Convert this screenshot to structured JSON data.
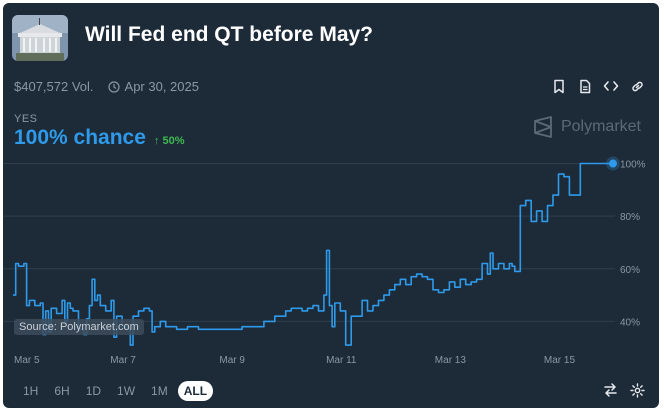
{
  "market": {
    "title": "Will Fed end QT before May?",
    "volume": "$407,572 Vol.",
    "end_date": "Apr 30, 2025",
    "outcome_label": "YES",
    "chance": "100% chance",
    "change": "↑ 50%",
    "brand": "Polymarket",
    "source": "Source: Polymarket.com"
  },
  "toolbar": {
    "icons": [
      "bookmark-icon",
      "document-icon",
      "embed-code-icon",
      "link-icon"
    ]
  },
  "time_ranges": [
    "1H",
    "6H",
    "1D",
    "1W",
    "1M",
    "ALL"
  ],
  "selected_range": "ALL",
  "bottom_tools": [
    "swap-icon",
    "settings-icon"
  ],
  "colors": {
    "background": "#1d2b39",
    "line": "#2e9ae9",
    "positive": "#3fb950",
    "muted": "#8a97a6"
  },
  "chart_data": {
    "type": "line",
    "x_tick_labels": [
      "Mar 5",
      "Mar 7",
      "Mar 9",
      "Mar 11",
      "Mar 13",
      "Mar 15"
    ],
    "y_tick_labels": [
      "40%",
      "60%",
      "80%",
      "100%"
    ],
    "y_ticks": [
      40,
      60,
      80,
      100
    ],
    "ylim": [
      28,
      104
    ],
    "xlim": [
      0,
      11
    ],
    "grid": true,
    "series": [
      {
        "color": "#2e9ae9",
        "x": [
          0,
          0.05,
          0.1,
          0.2,
          0.25,
          0.3,
          0.4,
          0.5,
          0.55,
          0.6,
          0.65,
          0.7,
          0.8,
          0.9,
          0.95,
          1.0,
          1.05,
          1.1,
          1.2,
          1.3,
          1.35,
          1.4,
          1.45,
          1.5,
          1.55,
          1.6,
          1.7,
          1.8,
          1.85,
          1.9,
          2.0,
          2.1,
          2.15,
          2.2,
          2.3,
          2.4,
          2.5,
          2.55,
          2.6,
          2.7,
          2.8,
          3.0,
          3.2,
          3.4,
          3.6,
          3.8,
          4.0,
          4.2,
          4.4,
          4.6,
          4.8,
          5.0,
          5.1,
          5.2,
          5.3,
          5.4,
          5.5,
          5.6,
          5.7,
          5.75,
          5.8,
          5.85,
          5.9,
          6.0,
          6.1,
          6.2,
          6.3,
          6.4,
          6.5,
          6.6,
          6.7,
          6.8,
          6.9,
          7.0,
          7.1,
          7.2,
          7.3,
          7.4,
          7.5,
          7.6,
          7.7,
          7.8,
          7.9,
          8.0,
          8.1,
          8.2,
          8.3,
          8.4,
          8.5,
          8.6,
          8.7,
          8.75,
          8.8,
          8.9,
          9.0,
          9.1,
          9.15,
          9.2,
          9.3,
          9.4,
          9.5,
          9.6,
          9.7,
          9.8,
          9.9,
          10.0,
          10.1,
          10.2,
          10.4,
          10.6,
          10.8,
          11.0
        ],
        "y": [
          50,
          62,
          61,
          62,
          46,
          48,
          46,
          47,
          35,
          44,
          36,
          45,
          43,
          48,
          40,
          47,
          45,
          44,
          37,
          35,
          41,
          46,
          56,
          48,
          50,
          46,
          44,
          48,
          34,
          42,
          38,
          37,
          31,
          42,
          44,
          45,
          44,
          36,
          38,
          40,
          38,
          37,
          38,
          37,
          37,
          37,
          37,
          38,
          38,
          40,
          42,
          44,
          45,
          45,
          44,
          45,
          46,
          44,
          50,
          67,
          46,
          38,
          47,
          44,
          31,
          42,
          42,
          48,
          44,
          46,
          48,
          50,
          52,
          54,
          56,
          54,
          57,
          58,
          57,
          56,
          52,
          51,
          52,
          55,
          53,
          56,
          54,
          55,
          56,
          62,
          58,
          66,
          60,
          62,
          60,
          62,
          61,
          59,
          84,
          86,
          78,
          82,
          78,
          84,
          88,
          96,
          95,
          88,
          100,
          100,
          100,
          100
        ]
      }
    ]
  }
}
